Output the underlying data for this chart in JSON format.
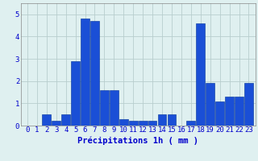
{
  "hours": [
    0,
    1,
    2,
    3,
    4,
    5,
    6,
    7,
    8,
    9,
    10,
    11,
    12,
    13,
    14,
    15,
    16,
    17,
    18,
    19,
    20,
    21,
    22,
    23
  ],
  "values": [
    0.0,
    0.0,
    0.5,
    0.2,
    0.5,
    2.9,
    4.8,
    4.7,
    1.6,
    1.6,
    0.3,
    0.2,
    0.2,
    0.2,
    0.5,
    0.5,
    0.0,
    0.2,
    4.6,
    1.9,
    1.1,
    1.3,
    1.3,
    1.9
  ],
  "bar_color": "#1a4fd6",
  "bar_edge_color": "#003399",
  "background_color": "#dff0f0",
  "grid_color": "#b8cece",
  "text_color": "#0000cc",
  "xlabel": "Précipitations 1h ( mm )",
  "ylim": [
    0,
    5.5
  ],
  "yticks": [
    0,
    1,
    2,
    3,
    4,
    5
  ],
  "tick_label_fontsize": 6.5,
  "xlabel_fontsize": 7.5
}
